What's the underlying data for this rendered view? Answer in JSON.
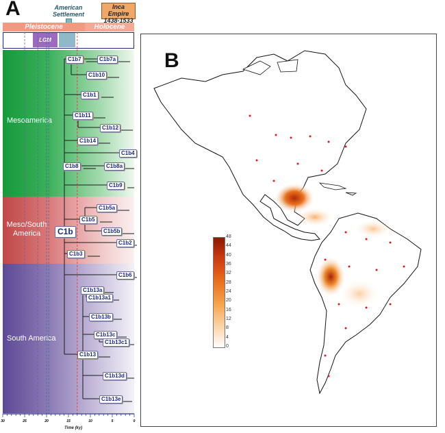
{
  "panels": {
    "a_label": "A",
    "b_label": "B"
  },
  "timeline": {
    "periods": [
      "Pleistocene",
      "Holocene"
    ],
    "lgm": "LGM",
    "settlement": [
      "American",
      "Settlement"
    ],
    "inca": [
      "Inca Empire",
      "1438-1533 AD"
    ]
  },
  "chart_data": [
    {
      "type": "tree",
      "xlabel": "Time (ky)",
      "x_ticks": [
        30,
        25,
        20,
        15,
        10,
        5,
        0
      ],
      "xlim": [
        30,
        0
      ],
      "regions": [
        "Mesoamerica",
        "Meso/South America",
        "South America"
      ],
      "root": "C1b",
      "lineages": [
        {
          "name": "C1b7",
          "parent": "C1b"
        },
        {
          "name": "C1b7a",
          "parent": "C1b7"
        },
        {
          "name": "C1b10",
          "parent": "C1b7"
        },
        {
          "name": "C1b1",
          "parent": "C1b"
        },
        {
          "name": "C1b11",
          "parent": "C1b"
        },
        {
          "name": "C1b12",
          "parent": "C1b11"
        },
        {
          "name": "C1b14",
          "parent": "C1b"
        },
        {
          "name": "C1b4",
          "parent": "C1b"
        },
        {
          "name": "C1b8",
          "parent": "C1b"
        },
        {
          "name": "C1b8a",
          "parent": "C1b8"
        },
        {
          "name": "C1b9",
          "parent": "C1b"
        },
        {
          "name": "C1b5a",
          "parent": "C1b5"
        },
        {
          "name": "C1b5",
          "parent": "C1b"
        },
        {
          "name": "C1b5b",
          "parent": "C1b5"
        },
        {
          "name": "C1b2",
          "parent": "C1b"
        },
        {
          "name": "C1b3",
          "parent": "C1b"
        },
        {
          "name": "C1b6",
          "parent": "C1b"
        },
        {
          "name": "C1b13a",
          "parent": "C1b13"
        },
        {
          "name": "C1b13a1",
          "parent": "C1b13a"
        },
        {
          "name": "C1b13b",
          "parent": "C1b13"
        },
        {
          "name": "C1b13c",
          "parent": "C1b13"
        },
        {
          "name": "C1b13c1",
          "parent": "C1b13c"
        },
        {
          "name": "C1b13",
          "parent": "C1b"
        },
        {
          "name": "C1b13d",
          "parent": "C1b13"
        },
        {
          "name": "C1b13e",
          "parent": "C1b13"
        }
      ]
    },
    {
      "type": "heatmap",
      "colorbar_ticks": [
        48,
        44,
        40,
        36,
        32,
        28,
        24,
        20,
        16,
        12,
        8,
        4,
        0
      ],
      "colorbar_range": [
        0,
        48
      ],
      "colors": [
        "#ffffff",
        "#f7a24a",
        "#e0641c",
        "#b02a0a",
        "#8a1a00"
      ]
    }
  ]
}
